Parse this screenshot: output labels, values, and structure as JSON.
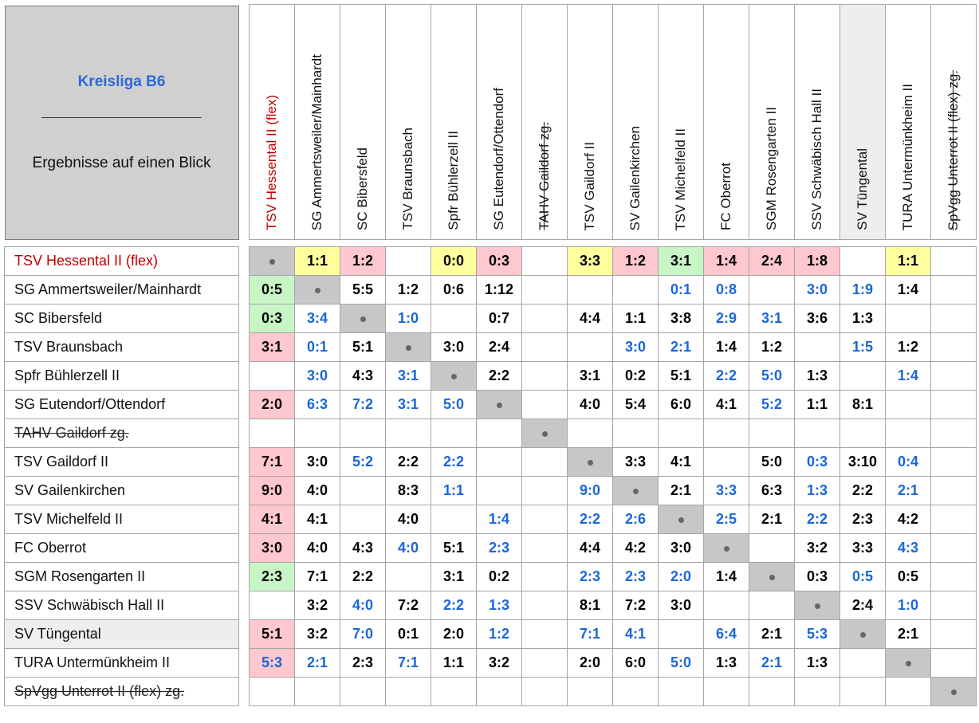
{
  "title": "Kreisliga B6",
  "separator": "________________________",
  "subtitle": "Ergebnisse auf einen Blick",
  "teams": [
    {
      "name": "TSV Hessental II (flex)",
      "style": "red"
    },
    {
      "name": "SG Ammertsweiler/Mainhardt",
      "style": ""
    },
    {
      "name": "SC Bibersfeld",
      "style": ""
    },
    {
      "name": "TSV Braunsbach",
      "style": ""
    },
    {
      "name": "Spfr Bühlerzell II",
      "style": ""
    },
    {
      "name": "SG Eutendorf/Ottendorf",
      "style": ""
    },
    {
      "name": "TAHV Gaildorf zg.",
      "style": "strike"
    },
    {
      "name": "TSV Gaildorf II",
      "style": ""
    },
    {
      "name": "SV Gailenkirchen",
      "style": ""
    },
    {
      "name": "TSV Michelfeld II",
      "style": ""
    },
    {
      "name": "FC Oberrot",
      "style": ""
    },
    {
      "name": "SGM Rosengarten II",
      "style": ""
    },
    {
      "name": "SSV Schwäbisch Hall II",
      "style": ""
    },
    {
      "name": "SV Tüngental",
      "style": "shade"
    },
    {
      "name": "TURA Untermünkheim II",
      "style": ""
    },
    {
      "name": "SpVgg Unterrot II (flex) zg.",
      "style": "strike"
    }
  ],
  "results": [
    [
      [
        "D",
        ""
      ],
      [
        "1:1",
        "yel"
      ],
      [
        "1:2",
        "red"
      ],
      [
        "",
        ""
      ],
      [
        "0:0",
        "yel"
      ],
      [
        "0:3",
        "red"
      ],
      [
        "",
        ""
      ],
      [
        "3:3",
        "yel"
      ],
      [
        "1:2",
        "red"
      ],
      [
        "3:1",
        "grn"
      ],
      [
        "1:4",
        "red"
      ],
      [
        "2:4",
        "red"
      ],
      [
        "1:8",
        "red"
      ],
      [
        "",
        ""
      ],
      [
        "1:1",
        "yel"
      ],
      [
        "",
        ""
      ]
    ],
    [
      [
        "0:5",
        "grn"
      ],
      [
        "D",
        ""
      ],
      [
        "5:5",
        ""
      ],
      [
        "1:2",
        ""
      ],
      [
        "0:6",
        ""
      ],
      [
        "1:12",
        ""
      ],
      [
        "",
        ""
      ],
      [
        "",
        ""
      ],
      [
        "",
        ""
      ],
      [
        "0:1",
        "blue"
      ],
      [
        "0:8",
        "blue"
      ],
      [
        "",
        ""
      ],
      [
        "3:0",
        "blue"
      ],
      [
        "1:9",
        "blue"
      ],
      [
        "1:4",
        ""
      ],
      [
        "",
        ""
      ]
    ],
    [
      [
        "0:3",
        "grn"
      ],
      [
        "3:4",
        "blue"
      ],
      [
        "D",
        ""
      ],
      [
        "1:0",
        "blue"
      ],
      [
        "",
        ""
      ],
      [
        "0:7",
        ""
      ],
      [
        "",
        ""
      ],
      [
        "4:4",
        ""
      ],
      [
        "1:1",
        ""
      ],
      [
        "3:8",
        ""
      ],
      [
        "2:9",
        "blue"
      ],
      [
        "3:1",
        "blue"
      ],
      [
        "3:6",
        ""
      ],
      [
        "1:3",
        ""
      ],
      [
        "",
        ""
      ],
      [
        "",
        ""
      ]
    ],
    [
      [
        "3:1",
        "red"
      ],
      [
        "0:1",
        "blue"
      ],
      [
        "5:1",
        ""
      ],
      [
        "D",
        ""
      ],
      [
        "3:0",
        ""
      ],
      [
        "2:4",
        ""
      ],
      [
        "",
        ""
      ],
      [
        "",
        ""
      ],
      [
        "3:0",
        "blue"
      ],
      [
        "2:1",
        "blue"
      ],
      [
        "1:4",
        ""
      ],
      [
        "1:2",
        ""
      ],
      [
        "",
        ""
      ],
      [
        "1:5",
        "blue"
      ],
      [
        "1:2",
        ""
      ],
      [
        "",
        ""
      ]
    ],
    [
      [
        "",
        ""
      ],
      [
        "3:0",
        "blue"
      ],
      [
        "4:3",
        ""
      ],
      [
        "3:1",
        "blue"
      ],
      [
        "D",
        ""
      ],
      [
        "2:2",
        ""
      ],
      [
        "",
        ""
      ],
      [
        "3:1",
        ""
      ],
      [
        "0:2",
        ""
      ],
      [
        "5:1",
        ""
      ],
      [
        "2:2",
        "blue"
      ],
      [
        "5:0",
        "blue"
      ],
      [
        "1:3",
        ""
      ],
      [
        "",
        ""
      ],
      [
        "1:4",
        "blue"
      ],
      [
        "",
        ""
      ]
    ],
    [
      [
        "2:0",
        "red"
      ],
      [
        "6:3",
        "blue"
      ],
      [
        "7:2",
        "blue"
      ],
      [
        "3:1",
        "blue"
      ],
      [
        "5:0",
        "blue"
      ],
      [
        "D",
        ""
      ],
      [
        "",
        ""
      ],
      [
        "4:0",
        ""
      ],
      [
        "5:4",
        ""
      ],
      [
        "6:0",
        ""
      ],
      [
        "4:1",
        ""
      ],
      [
        "5:2",
        "blue"
      ],
      [
        "1:1",
        ""
      ],
      [
        "8:1",
        ""
      ],
      [
        "",
        ""
      ],
      [
        "",
        ""
      ]
    ],
    [
      [
        "",
        ""
      ],
      [
        "",
        ""
      ],
      [
        "",
        ""
      ],
      [
        "",
        ""
      ],
      [
        "",
        ""
      ],
      [
        "",
        ""
      ],
      [
        "D",
        ""
      ],
      [
        "",
        ""
      ],
      [
        "",
        ""
      ],
      [
        "",
        ""
      ],
      [
        "",
        ""
      ],
      [
        "",
        ""
      ],
      [
        "",
        ""
      ],
      [
        "",
        ""
      ],
      [
        "",
        ""
      ],
      [
        "",
        ""
      ]
    ],
    [
      [
        "7:1",
        "red"
      ],
      [
        "3:0",
        ""
      ],
      [
        "5:2",
        "blue"
      ],
      [
        "2:2",
        ""
      ],
      [
        "2:2",
        "blue"
      ],
      [
        "",
        ""
      ],
      [
        "",
        ""
      ],
      [
        "D",
        ""
      ],
      [
        "3:3",
        ""
      ],
      [
        "4:1",
        ""
      ],
      [
        "",
        ""
      ],
      [
        "5:0",
        ""
      ],
      [
        "0:3",
        "blue"
      ],
      [
        "3:10",
        ""
      ],
      [
        "0:4",
        "blue"
      ],
      [
        "",
        ""
      ]
    ],
    [
      [
        "9:0",
        "red"
      ],
      [
        "4:0",
        ""
      ],
      [
        "",
        ""
      ],
      [
        "8:3",
        ""
      ],
      [
        "1:1",
        "blue"
      ],
      [
        "",
        ""
      ],
      [
        "",
        ""
      ],
      [
        "9:0",
        "blue"
      ],
      [
        "D",
        ""
      ],
      [
        "2:1",
        ""
      ],
      [
        "3:3",
        "blue"
      ],
      [
        "6:3",
        ""
      ],
      [
        "1:3",
        "blue"
      ],
      [
        "2:2",
        ""
      ],
      [
        "2:1",
        "blue"
      ],
      [
        "",
        ""
      ]
    ],
    [
      [
        "4:1",
        "red"
      ],
      [
        "4:1",
        ""
      ],
      [
        "",
        ""
      ],
      [
        "4:0",
        ""
      ],
      [
        "",
        ""
      ],
      [
        "1:4",
        "blue"
      ],
      [
        "",
        ""
      ],
      [
        "2:2",
        "blue"
      ],
      [
        "2:6",
        "blue"
      ],
      [
        "D",
        ""
      ],
      [
        "2:5",
        "blue"
      ],
      [
        "2:1",
        ""
      ],
      [
        "2:2",
        "blue"
      ],
      [
        "2:3",
        ""
      ],
      [
        "4:2",
        ""
      ],
      [
        "",
        ""
      ]
    ],
    [
      [
        "3:0",
        "red"
      ],
      [
        "4:0",
        ""
      ],
      [
        "4:3",
        ""
      ],
      [
        "4:0",
        "blue"
      ],
      [
        "5:1",
        ""
      ],
      [
        "2:3",
        "blue"
      ],
      [
        "",
        ""
      ],
      [
        "4:4",
        ""
      ],
      [
        "4:2",
        ""
      ],
      [
        "3:0",
        ""
      ],
      [
        "D",
        ""
      ],
      [
        "",
        ""
      ],
      [
        "3:2",
        ""
      ],
      [
        "3:3",
        ""
      ],
      [
        "4:3",
        "blue"
      ],
      [
        "",
        ""
      ]
    ],
    [
      [
        "2:3",
        "grn"
      ],
      [
        "7:1",
        ""
      ],
      [
        "2:2",
        ""
      ],
      [
        "",
        ""
      ],
      [
        "3:1",
        ""
      ],
      [
        "0:2",
        ""
      ],
      [
        "",
        ""
      ],
      [
        "2:3",
        "blue"
      ],
      [
        "2:3",
        "blue"
      ],
      [
        "2:0",
        "blue"
      ],
      [
        "1:4",
        ""
      ],
      [
        "D",
        ""
      ],
      [
        "0:3",
        ""
      ],
      [
        "0:5",
        "blue"
      ],
      [
        "0:5",
        ""
      ],
      [
        "",
        ""
      ]
    ],
    [
      [
        "",
        ""
      ],
      [
        "3:2",
        ""
      ],
      [
        "4:0",
        "blue"
      ],
      [
        "7:2",
        ""
      ],
      [
        "2:2",
        "blue"
      ],
      [
        "1:3",
        "blue"
      ],
      [
        "",
        ""
      ],
      [
        "8:1",
        ""
      ],
      [
        "7:2",
        ""
      ],
      [
        "3:0",
        ""
      ],
      [
        "",
        ""
      ],
      [
        "",
        ""
      ],
      [
        "D",
        ""
      ],
      [
        "2:4",
        ""
      ],
      [
        "1:0",
        "blue"
      ],
      [
        "",
        ""
      ]
    ],
    [
      [
        "5:1",
        "red"
      ],
      [
        "3:2",
        ""
      ],
      [
        "7:0",
        "blue"
      ],
      [
        "0:1",
        ""
      ],
      [
        "2:0",
        ""
      ],
      [
        "1:2",
        "blue"
      ],
      [
        "",
        ""
      ],
      [
        "7:1",
        "blue"
      ],
      [
        "4:1",
        "blue"
      ],
      [
        "",
        ""
      ],
      [
        "6:4",
        "blue"
      ],
      [
        "2:1",
        ""
      ],
      [
        "5:3",
        "blue"
      ],
      [
        "D",
        ""
      ],
      [
        "2:1",
        ""
      ],
      [
        "",
        ""
      ]
    ],
    [
      [
        "5:3",
        "redblue"
      ],
      [
        "2:1",
        "blue"
      ],
      [
        "2:3",
        ""
      ],
      [
        "7:1",
        "blue"
      ],
      [
        "1:1",
        ""
      ],
      [
        "3:2",
        ""
      ],
      [
        "",
        ""
      ],
      [
        "2:0",
        ""
      ],
      [
        "6:0",
        ""
      ],
      [
        "5:0",
        "blue"
      ],
      [
        "1:3",
        ""
      ],
      [
        "2:1",
        "blue"
      ],
      [
        "1:3",
        ""
      ],
      [
        "",
        ""
      ],
      [
        "D",
        ""
      ],
      [
        "",
        ""
      ]
    ],
    [
      [
        "",
        ""
      ],
      [
        "",
        ""
      ],
      [
        "",
        ""
      ],
      [
        "",
        ""
      ],
      [
        "",
        ""
      ],
      [
        "",
        ""
      ],
      [
        "",
        ""
      ],
      [
        "",
        ""
      ],
      [
        "",
        ""
      ],
      [
        "",
        ""
      ],
      [
        "",
        ""
      ],
      [
        "",
        ""
      ],
      [
        "",
        ""
      ],
      [
        "",
        ""
      ],
      [
        "",
        ""
      ],
      [
        "D",
        ""
      ]
    ]
  ]
}
